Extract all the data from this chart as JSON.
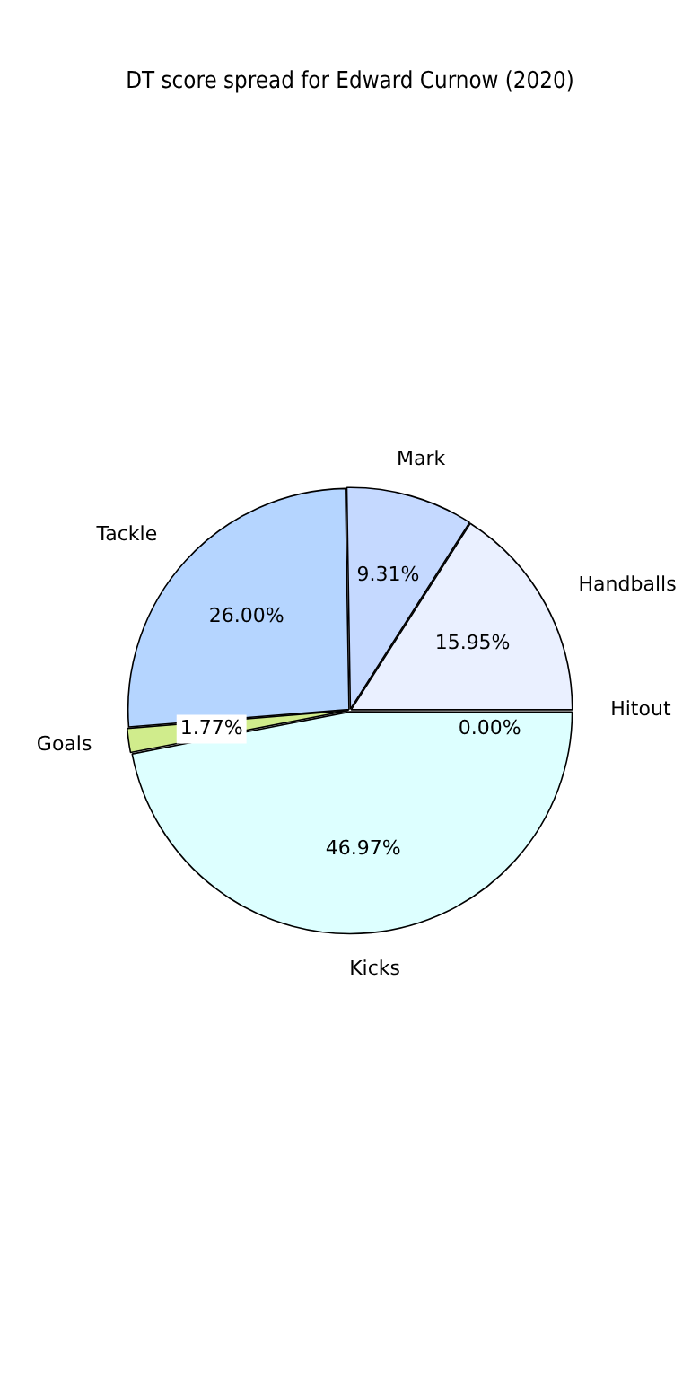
{
  "chart_data": {
    "type": "pie",
    "title": "DT score spread for Edward Curnow (2020)",
    "categories": [
      "Hitout",
      "Kicks",
      "Goals",
      "Tackle",
      "Mark",
      "Handballs"
    ],
    "values": [
      0.0,
      46.97,
      1.77,
      26.0,
      9.31,
      15.95
    ],
    "colors": [
      "#d9d9d9",
      "#ddffff",
      "#d0ec8c",
      "#b5d5ff",
      "#c5d9ff",
      "#eaf0ff"
    ],
    "value_labels": [
      "0.00%",
      "46.97%",
      "1.77%",
      "26.00%",
      "9.31%",
      "15.95%"
    ]
  }
}
